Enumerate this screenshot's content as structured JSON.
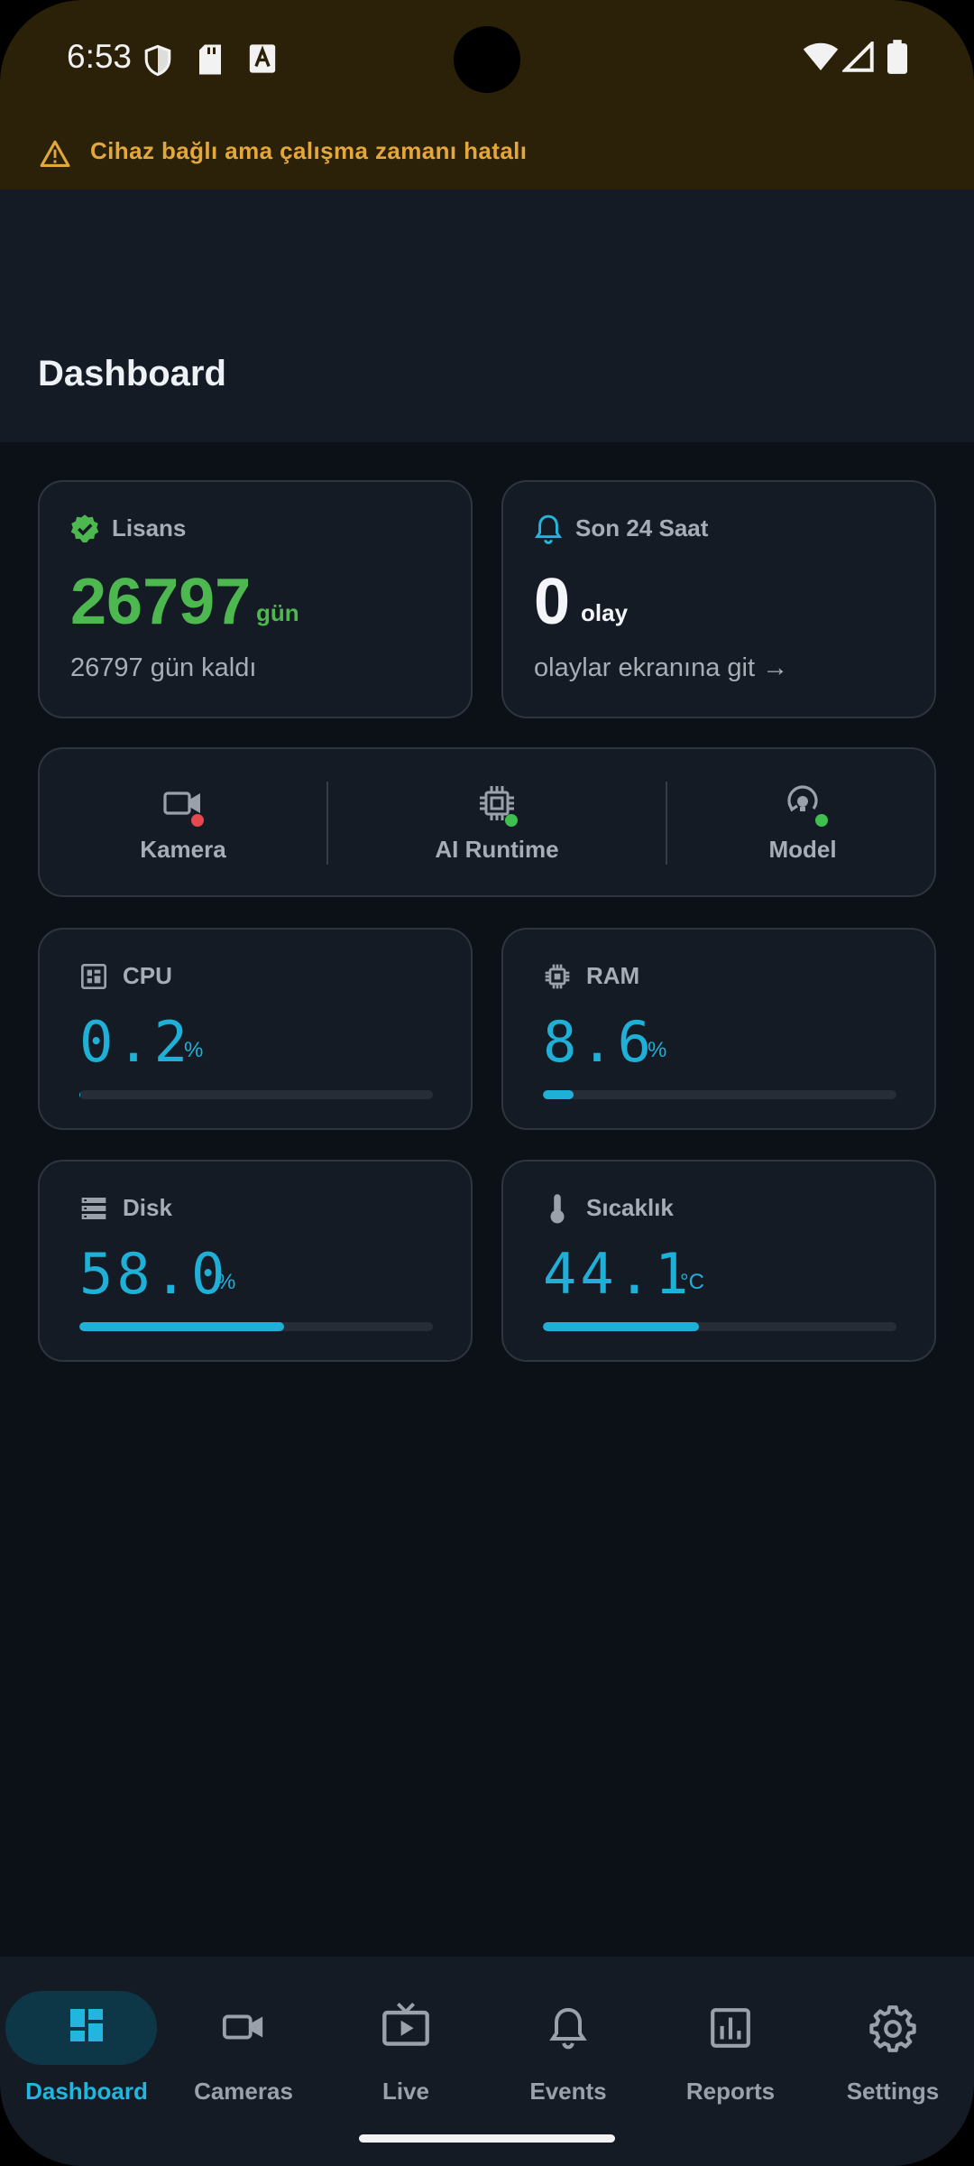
{
  "status_bar": {
    "time": "6:53"
  },
  "warning": {
    "text": "Cihaz bağlı ama çalışma zamanı hatalı",
    "color": "#e3a73a"
  },
  "appbar": {
    "title": "Dashboard"
  },
  "license_card": {
    "label": "Lisans",
    "value": "26797",
    "unit": "gün",
    "subtitle": "26797 gün kaldı",
    "color": "#4cb84f"
  },
  "events_card": {
    "label": "Son 24 Saat",
    "value": "0",
    "unit": "olay",
    "link": "olaylar ekranına git →"
  },
  "services": [
    {
      "label": "Kamera",
      "icon": "videocam-icon",
      "status_color": "#e5484d"
    },
    {
      "label": "AI Runtime",
      "icon": "chip-icon",
      "status_color": "#3fbf4f"
    },
    {
      "label": "Model",
      "icon": "model-icon",
      "status_color": "#3fbf4f"
    }
  ],
  "metrics": [
    {
      "label": "CPU",
      "value": "0.2",
      "unit": "%",
      "percent": 0.2,
      "icon": "cpu-icon"
    },
    {
      "label": "RAM",
      "value": "8.6",
      "unit": "%",
      "percent": 8.6,
      "icon": "memory-icon"
    },
    {
      "label": "Disk",
      "value": "58.0",
      "unit": "%",
      "percent": 58.0,
      "icon": "storage-icon"
    },
    {
      "label": "Sıcaklık",
      "value": "44.1",
      "unit": "°C",
      "percent": 44.1,
      "icon": "thermometer-icon"
    }
  ],
  "accent_color": "#1fb0d8",
  "nav": [
    {
      "label": "Dashboard",
      "icon": "dashboard-icon",
      "active": true
    },
    {
      "label": "Cameras",
      "icon": "videocam-icon",
      "active": false
    },
    {
      "label": "Live",
      "icon": "live-tv-icon",
      "active": false
    },
    {
      "label": "Events",
      "icon": "bell-icon",
      "active": false
    },
    {
      "label": "Reports",
      "icon": "bar-chart-icon",
      "active": false
    },
    {
      "label": "Settings",
      "icon": "gear-icon",
      "active": false
    }
  ]
}
